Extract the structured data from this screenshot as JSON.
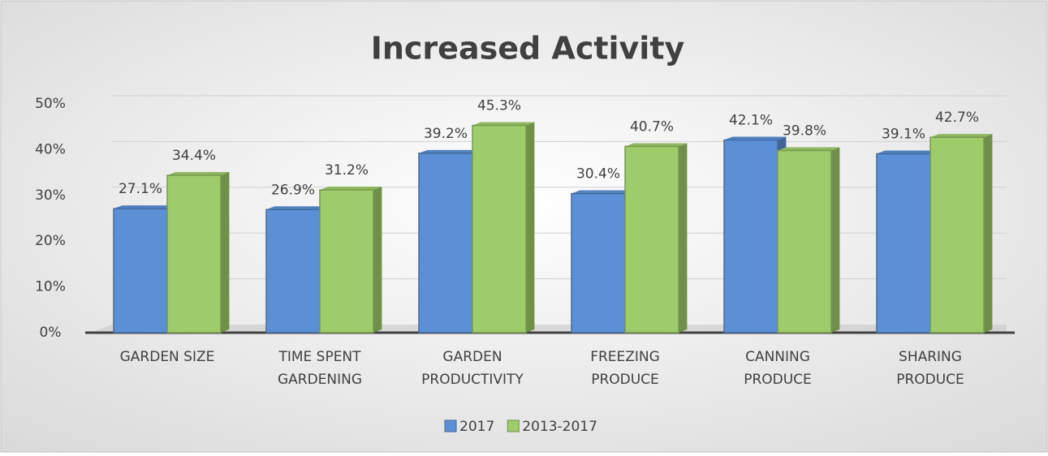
{
  "chart_data": {
    "type": "bar",
    "title": "Increased Activity",
    "categories": [
      [
        "GARDEN SIZE"
      ],
      [
        "TIME SPENT",
        "GARDENING"
      ],
      [
        "GARDEN",
        "PRODUCTIVITY"
      ],
      [
        "FREEZING",
        "PRODUCE"
      ],
      [
        "CANNING",
        "PRODUCE"
      ],
      [
        "SHARING",
        "PRODUCE"
      ]
    ],
    "series": [
      {
        "name": "2017",
        "color": "#5b8fd6",
        "values": [
          27.1,
          26.9,
          39.2,
          30.4,
          42.1,
          39.1
        ],
        "value_labels": [
          "27.1%",
          "26.9%",
          "39.2%",
          "30.4%",
          "42.1%",
          "39.1%"
        ]
      },
      {
        "name": "2013-2017",
        "color": "#9fcc6b",
        "values": [
          34.4,
          31.2,
          45.3,
          40.7,
          39.8,
          42.7
        ],
        "value_labels": [
          "34.4%",
          "31.2%",
          "45.3%",
          "40.7%",
          "39.8%",
          "42.7%"
        ]
      }
    ],
    "ylim": [
      0,
      50
    ],
    "yticks": [
      {
        "value": 0,
        "label": "0%"
      },
      {
        "value": 10,
        "label": "10%"
      },
      {
        "value": 20,
        "label": "20%"
      },
      {
        "value": 30,
        "label": "30%"
      },
      {
        "value": 40,
        "label": "40%"
      },
      {
        "value": 50,
        "label": "50%"
      }
    ],
    "grid": true,
    "legend": "bottom"
  }
}
